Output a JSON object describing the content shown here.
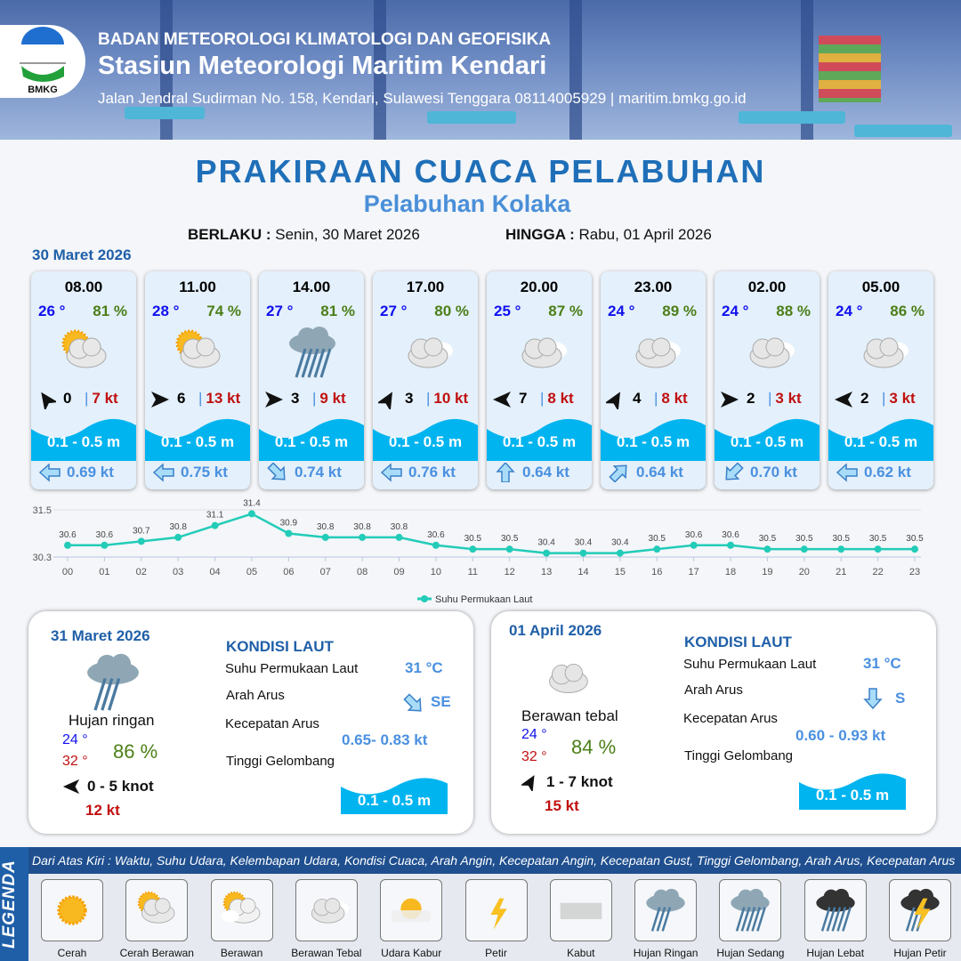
{
  "header": {
    "agency": "BADAN METEOROLOGI KLIMATOLOGI DAN GEOFISIKA",
    "station": "Stasiun Meteorologi Maritim Kendari",
    "contact": "Jalan Jendral Sudirman No. 158, Kendari, Sulawesi Tenggara  08114005929 | maritim.bmkg.go.id",
    "logo_text": "BMKG"
  },
  "title": "PRAKIRAAN CUACA PELABUHAN",
  "subtitle": "Pelabuhan Kolaka",
  "validity": {
    "from_label": "BERLAKU :",
    "from": "Senin, 30 Maret 2026",
    "to_label": "HINGGA :",
    "to": "Rabu, 01 April 2026"
  },
  "day1_date": "30 Maret 2026",
  "colors": {
    "brand": "#1f6fb8",
    "temp": "#1010ee",
    "humidity": "#4c7f18",
    "gust": "#c01010",
    "wave": "#00b4f0",
    "current": "#4a90e0",
    "chart_line": "#22ccb8"
  },
  "cards": [
    {
      "time": "08.00",
      "temp": "26 °",
      "rh": "81 %",
      "icon": "cerah-berawan",
      "wind_dir_deg": -125,
      "wind": "0",
      "gust": "7 kt",
      "wave": "0.1 - 0.5 m",
      "current_icon": "arrow-left",
      "current_deg": 180,
      "current": "0.69 kt"
    },
    {
      "time": "11.00",
      "temp": "28 °",
      "rh": "74 %",
      "icon": "cerah-berawan",
      "wind_dir_deg": 0,
      "wind": "6",
      "gust": "13 kt",
      "wave": "0.1 - 0.5 m",
      "current_icon": "arrow-left",
      "current_deg": 180,
      "current": "0.75 kt"
    },
    {
      "time": "14.00",
      "temp": "27 °",
      "rh": "81 %",
      "icon": "hujan-sedang",
      "wind_dir_deg": 0,
      "wind": "3",
      "gust": "9 kt",
      "wave": "0.1 - 0.5 m",
      "current_icon": "arrow-down-right",
      "current_deg": 45,
      "current": "0.74 kt"
    },
    {
      "time": "17.00",
      "temp": "27 °",
      "rh": "80 %",
      "icon": "berawan-tebal",
      "wind_dir_deg": -60,
      "wind": "3",
      "gust": "10 kt",
      "wave": "0.1 - 0.5 m",
      "current_icon": "arrow-left",
      "current_deg": 180,
      "current": "0.76 kt"
    },
    {
      "time": "20.00",
      "temp": "25 °",
      "rh": "87 %",
      "icon": "berawan-tebal",
      "wind_dir_deg": 180,
      "wind": "7",
      "gust": "8 kt",
      "wave": "0.1 - 0.5 m",
      "current_icon": "arrow-up",
      "current_deg": -90,
      "current": "0.64 kt"
    },
    {
      "time": "23.00",
      "temp": "24 °",
      "rh": "89 %",
      "icon": "berawan-tebal",
      "wind_dir_deg": -60,
      "wind": "4",
      "gust": "8 kt",
      "wave": "0.1 - 0.5 m",
      "current_icon": "arrow-up-right",
      "current_deg": -45,
      "current": "0.64 kt"
    },
    {
      "time": "02.00",
      "temp": "24 °",
      "rh": "88 %",
      "icon": "berawan-tebal",
      "wind_dir_deg": 0,
      "wind": "2",
      "gust": "3 kt",
      "wave": "0.1 - 0.5 m",
      "current_icon": "arrow-down-left",
      "current_deg": 135,
      "current": "0.70 kt"
    },
    {
      "time": "05.00",
      "temp": "24 °",
      "rh": "86 %",
      "icon": "berawan-tebal",
      "wind_dir_deg": 180,
      "wind": "2",
      "gust": "3 kt",
      "wave": "0.1 - 0.5 m",
      "current_icon": "arrow-left",
      "current_deg": 180,
      "current": "0.62 kt"
    }
  ],
  "chart_data": {
    "type": "line",
    "x": [
      "00",
      "01",
      "02",
      "03",
      "04",
      "05",
      "06",
      "07",
      "08",
      "09",
      "10",
      "11",
      "12",
      "13",
      "14",
      "15",
      "16",
      "17",
      "18",
      "19",
      "20",
      "21",
      "22",
      "23"
    ],
    "series": [
      {
        "name": "Suhu Permukaan Laut",
        "values": [
          30.6,
          30.6,
          30.7,
          30.8,
          31.1,
          31.4,
          30.9,
          30.8,
          30.8,
          30.8,
          30.6,
          30.5,
          30.5,
          30.4,
          30.4,
          30.4,
          30.5,
          30.6,
          30.6,
          30.5,
          30.5,
          30.5,
          30.5,
          30.5
        ]
      }
    ],
    "yticks": [
      "31.5",
      "30.3"
    ],
    "ylim": [
      30.3,
      31.5
    ],
    "grid": true,
    "legend": "bottom-center"
  },
  "panels": [
    {
      "date": "31 Maret 2026",
      "icon": "hujan-ringan",
      "condition": "Hujan ringan",
      "tmin": "24 °",
      "tmax": "32 °",
      "rh": "86 %",
      "wind_dir_deg": 180,
      "wind": "0 - 5 knot",
      "gust": "12 kt",
      "heading": "KONDISI LAUT",
      "sst_label": "Suhu Permukaan Laut",
      "sst": "31 °C",
      "dir_label": "Arah Arus",
      "dir_deg": 45,
      "dir": "SE",
      "speed_label": "Kecepatan Arus",
      "speed": "0.65- 0.83 kt",
      "wave_label": "Tinggi Gelombang",
      "wave": "0.1 - 0.5 m"
    },
    {
      "date": "01 April 2026",
      "icon": "berawan-tebal",
      "condition": "Berawan tebal",
      "tmin": "24 °",
      "tmax": "32 °",
      "rh": "84 %",
      "wind_dir_deg": -60,
      "wind": "1 - 7 knot",
      "gust": "15 kt",
      "heading": "KONDISI LAUT",
      "sst_label": "Suhu Permukaan Laut",
      "sst": "31 °C",
      "dir_label": "Arah Arus",
      "dir_deg": 90,
      "dir": "S",
      "speed_label": "Kecepatan Arus",
      "speed": "0.60 - 0.93 kt",
      "wave_label": "Tinggi Gelombang",
      "wave": "0.1 - 0.5 m"
    }
  ],
  "legend": {
    "title": "LEGENDA",
    "note": "Dari Atas Kiri : Waktu, Suhu Udara, Kelembapan Udara, Kondisi Cuaca, Arah Angin, Kecepatan Angin, Kecepatan Gust, Tinggi Gelombang, Arah Arus, Kecepatan Arus",
    "items": [
      {
        "label": "Cerah",
        "icon": "cerah"
      },
      {
        "label": "Cerah Berawan",
        "icon": "cerah-berawan"
      },
      {
        "label": "Berawan",
        "icon": "berawan"
      },
      {
        "label": "Berawan Tebal",
        "icon": "berawan-tebal"
      },
      {
        "label": "Udara Kabur",
        "icon": "udara-kabur"
      },
      {
        "label": "Petir",
        "icon": "petir"
      },
      {
        "label": "Kabut",
        "icon": "kabut"
      },
      {
        "label": "Hujan Ringan",
        "icon": "hujan-ringan"
      },
      {
        "label": "Hujan Sedang",
        "icon": "hujan-sedang"
      },
      {
        "label": "Hujan Lebat",
        "icon": "hujan-lebat"
      },
      {
        "label": "Hujan Petir",
        "icon": "hujan-petir"
      }
    ]
  }
}
